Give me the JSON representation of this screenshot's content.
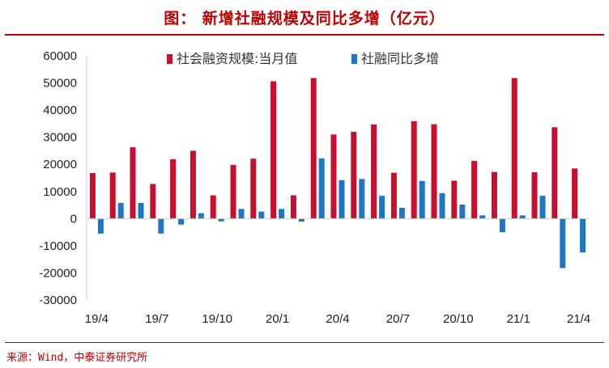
{
  "header": {
    "title": "图：  新增社融规模及同比多增（亿元）"
  },
  "footer": {
    "source": "来源：Wind，中泰证券研究所"
  },
  "chart_data": {
    "type": "bar",
    "title": "",
    "xlabel": "",
    "ylabel": "",
    "ylim": [
      -30000,
      60000
    ],
    "yticks": [
      60000,
      50000,
      40000,
      30000,
      20000,
      10000,
      0,
      -10000,
      -20000,
      -30000
    ],
    "grid": false,
    "legend": "top",
    "categories": [
      "19/4",
      "19/5",
      "19/6",
      "19/7",
      "19/8",
      "19/9",
      "19/10",
      "19/11",
      "19/12",
      "20/1",
      "20/2",
      "20/3",
      "20/4",
      "20/5",
      "20/6",
      "20/7",
      "20/8",
      "20/9",
      "20/10",
      "20/11",
      "20/12",
      "21/1",
      "21/2",
      "21/3",
      "21/4"
    ],
    "category_labels": [
      "19/4",
      "19/7",
      "19/10",
      "20/1",
      "20/4",
      "20/7",
      "20/10",
      "21/1",
      "21/4"
    ],
    "series": [
      {
        "name": "社会融资规模:当月值",
        "color": "#c8102e",
        "values": [
          16800,
          17000,
          26300,
          12800,
          21900,
          25000,
          8600,
          19800,
          22100,
          50600,
          8600,
          51800,
          31000,
          32000,
          34700,
          16900,
          35900,
          34800,
          14000,
          21300,
          17200,
          51800,
          17100,
          33700,
          18500
        ]
      },
      {
        "name": "社融同比多增",
        "color": "#1f77c4",
        "values": [
          -5500,
          5800,
          5800,
          -5500,
          -2200,
          2000,
          -1000,
          3600,
          2600,
          3600,
          -1100,
          22200,
          14200,
          14600,
          8400,
          4000,
          13900,
          9400,
          5200,
          1200,
          -5000,
          1200,
          8400,
          -18200,
          -12500
        ]
      }
    ]
  }
}
